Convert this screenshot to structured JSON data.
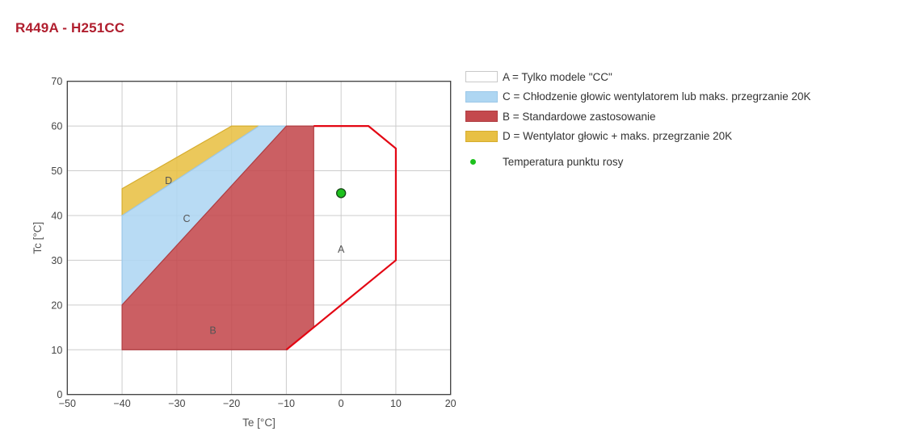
{
  "title": "R449A - H251CC",
  "title_color": "#b01e2e",
  "legend": {
    "items": [
      {
        "swatch": "#ffffff",
        "border": "#c9c9c9",
        "label": "A = Tylko modele \"CC\""
      },
      {
        "swatch": "#aed6f2",
        "border": "#9cc8e8",
        "label": "C = Chłodzenie głowic wentylatorem lub maks. przegrzanie 20K"
      },
      {
        "swatch": "#c4494d",
        "border": "#b03d41",
        "label": "B = Standardowe zastosowanie"
      },
      {
        "swatch": "#e8c044",
        "border": "#d6ad2e",
        "label": "D = Wentylator głowic + maks. przegrzanie 20K"
      }
    ],
    "point_item": {
      "color": "#1dc11d",
      "label": "Temperatura punktu rosy"
    }
  },
  "chart_data": {
    "type": "area",
    "title": "",
    "xlabel": "Te [°C]",
    "ylabel": "Tc [°C]",
    "xlim": [
      -50,
      20
    ],
    "ylim": [
      0,
      70
    ],
    "xticks": [
      -50,
      -40,
      -30,
      -20,
      -10,
      0,
      10,
      20
    ],
    "yticks": [
      0,
      10,
      20,
      30,
      40,
      50,
      60,
      70
    ],
    "grid": true,
    "grid_color": "#cccccc",
    "axis_color": "#444444",
    "tick_label_color": "#444444",
    "regions": [
      {
        "name": "D",
        "color": "#e8c044",
        "edge_color": "#d6ad2e",
        "label": "D",
        "label_pos": [
          -31.5,
          47.8
        ],
        "points": [
          [
            -40,
            40
          ],
          [
            -40,
            46
          ],
          [
            -20,
            60
          ],
          [
            -15,
            60
          ]
        ]
      },
      {
        "name": "C",
        "color": "#aed6f2",
        "edge_color": "#9cc8e8",
        "label": "C",
        "label_pos": [
          -28.2,
          39.3
        ],
        "points": [
          [
            -40,
            20
          ],
          [
            -40,
            40
          ],
          [
            -15,
            60
          ],
          [
            -10,
            60
          ]
        ]
      },
      {
        "name": "B",
        "color": "#c4494d",
        "edge_color": "#b03d41",
        "label": "B",
        "label_pos": [
          -23.4,
          14.3
        ],
        "points": [
          [
            -40,
            10
          ],
          [
            -40,
            20
          ],
          [
            -10,
            60
          ],
          [
            -5,
            60
          ],
          [
            -5,
            15
          ],
          [
            -10,
            10
          ]
        ]
      }
    ],
    "region_a": {
      "label": "A",
      "label_pos": [
        0,
        32.4
      ]
    },
    "envelope_outline": {
      "color": "#e30613",
      "points": [
        [
          -5,
          60
        ],
        [
          5,
          60
        ],
        [
          10,
          55
        ],
        [
          10,
          30
        ],
        [
          -10,
          10
        ]
      ]
    },
    "dew_point": {
      "x": 0,
      "y": 45,
      "color": "#1dc11d",
      "edge_color": "#1a4d1a",
      "label": "Temperatura punktu rosy"
    },
    "legend_position": "right top, outside plot"
  }
}
